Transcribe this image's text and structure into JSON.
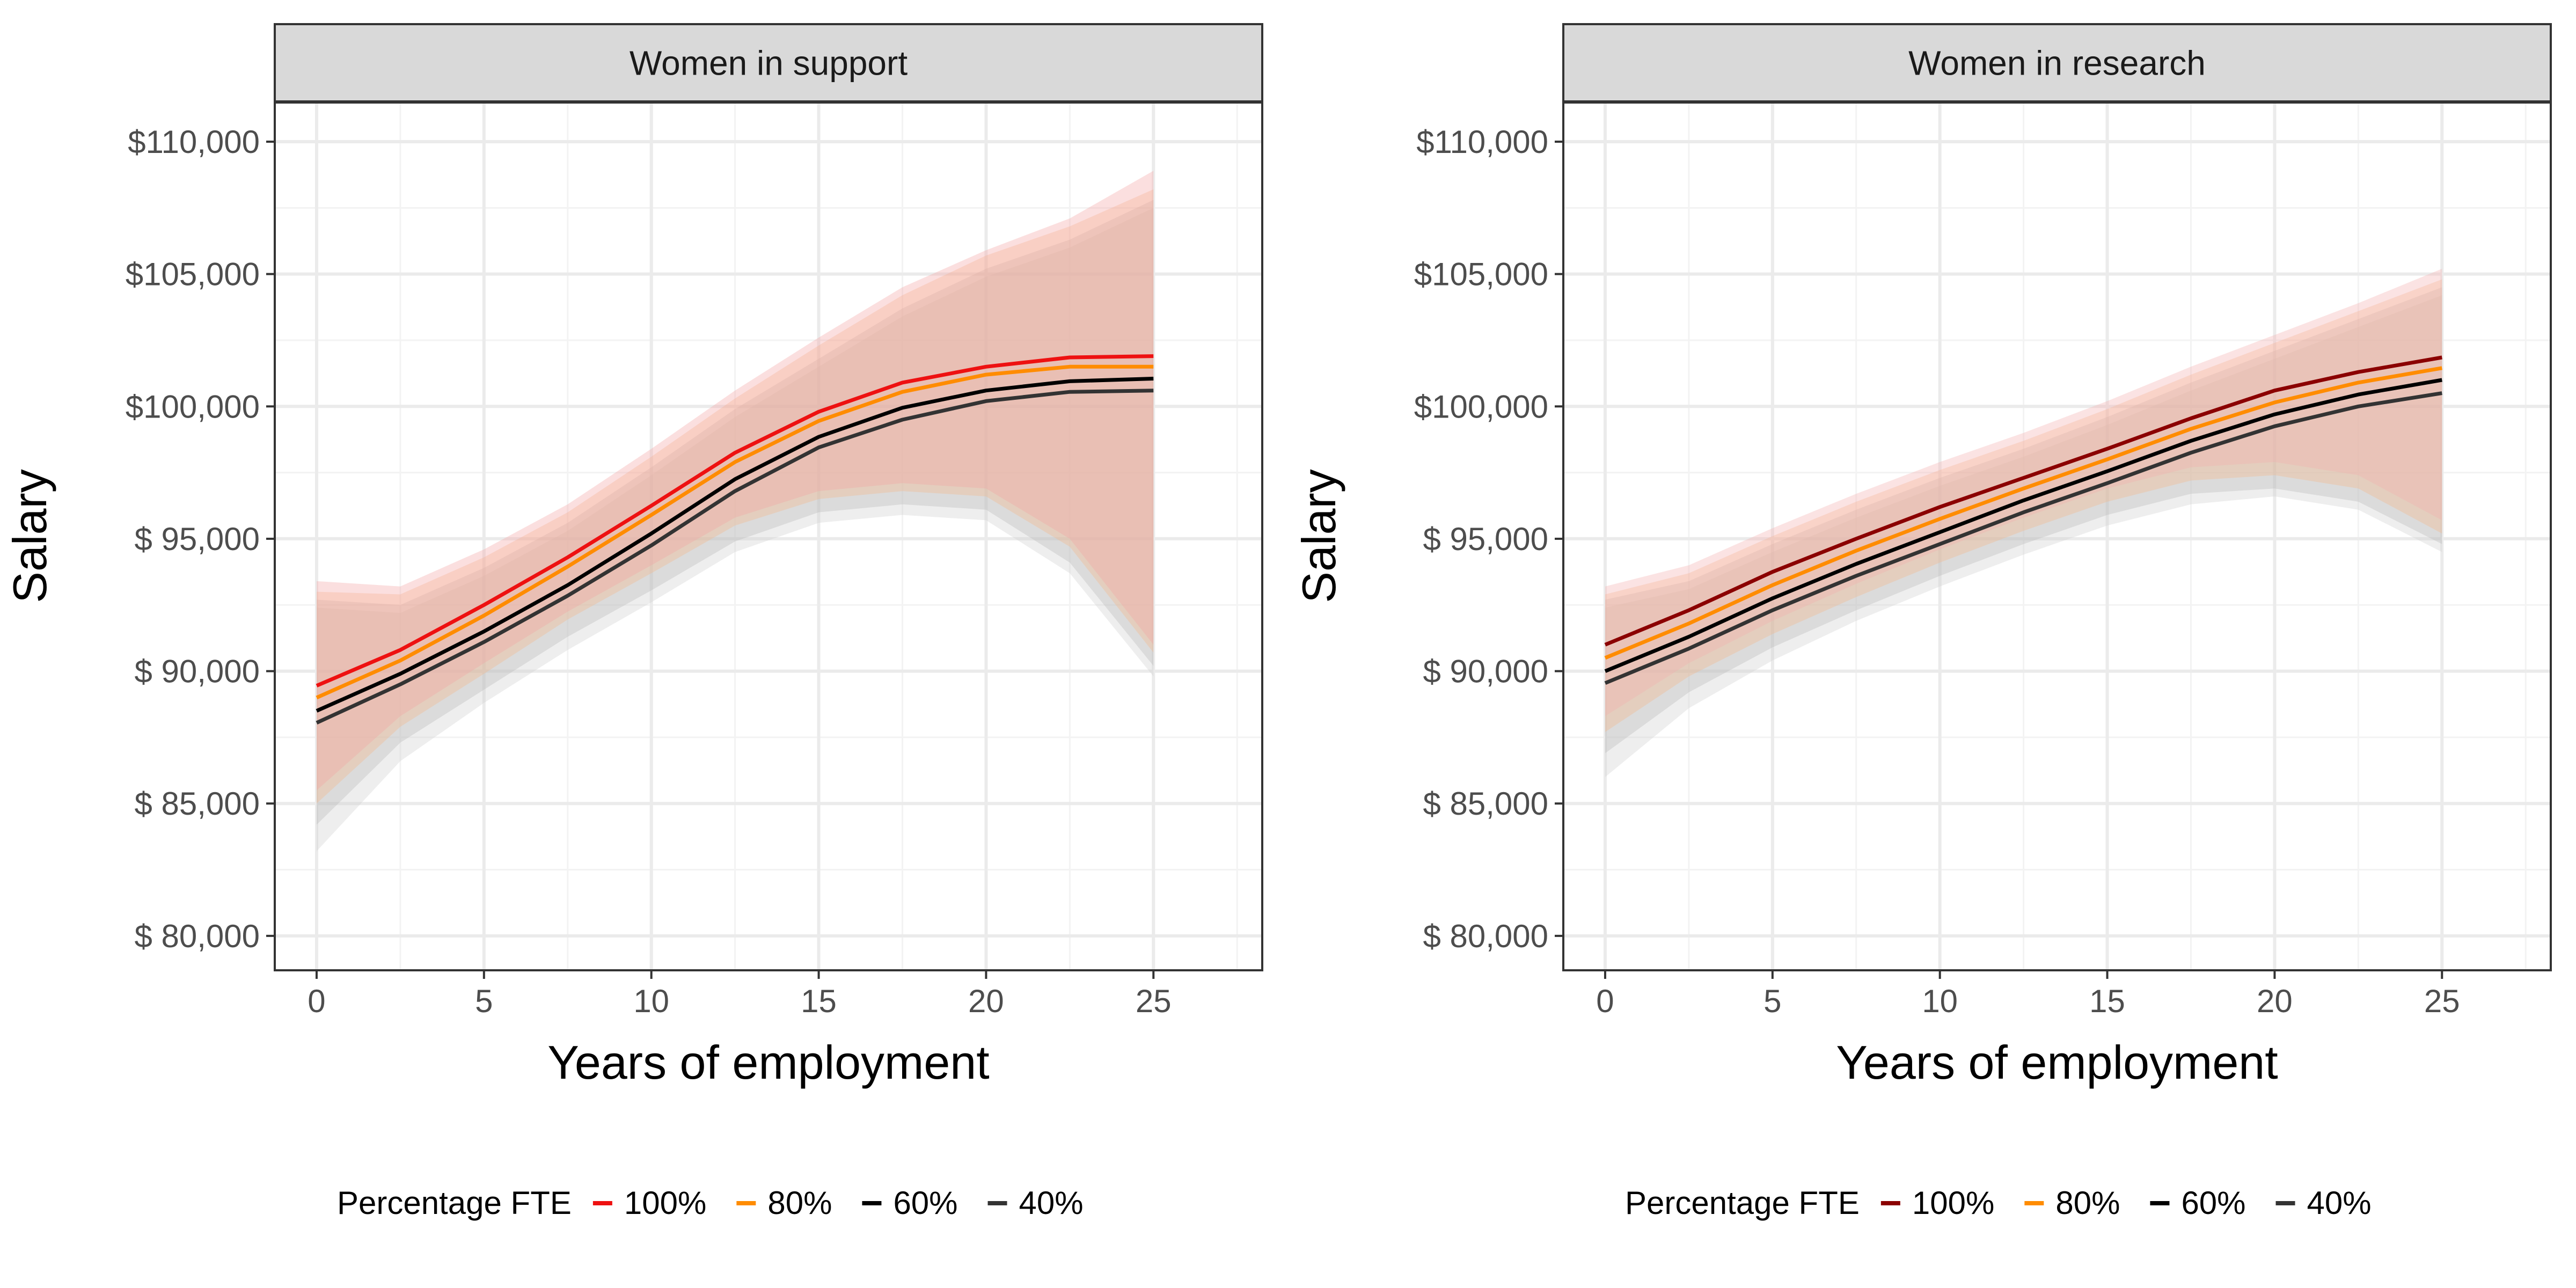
{
  "chart_data": [
    {
      "type": "line",
      "facet_title": "Women in support",
      "xlabel": "Years of employment",
      "ylabel": "Salary",
      "xlim": [
        -1.25,
        28.25
      ],
      "ylim": [
        78700,
        111500
      ],
      "x_ticks": [
        0,
        5,
        10,
        15,
        20,
        25
      ],
      "x_tick_labels": [
        "0",
        "5",
        "10",
        "15",
        "20",
        "25"
      ],
      "y_ticks": [
        80000,
        85000,
        90000,
        95000,
        100000,
        105000,
        110000
      ],
      "y_tick_labels": [
        "$ 80,000",
        "$ 85,000",
        "$ 90,000",
        "$ 95,000",
        "$100,000",
        "$105,000",
        "$110,000"
      ],
      "grid": true,
      "x": [
        0,
        2.5,
        5,
        7.5,
        10,
        12.5,
        15,
        17.5,
        20,
        22.5,
        25
      ],
      "series": [
        {
          "name": "100%",
          "color": "#ee1111",
          "band_color": "#f4a3a3",
          "values": [
            89450,
            90800,
            92500,
            94300,
            96250,
            98250,
            99800,
            100900,
            101500,
            101850,
            101900
          ],
          "lower": [
            85500,
            88300,
            90300,
            92250,
            94000,
            95800,
            96800,
            97100,
            96900,
            95000,
            91000
          ],
          "upper": [
            93400,
            93200,
            94600,
            96300,
            98400,
            100600,
            102600,
            104500,
            105900,
            107100,
            108900
          ]
        },
        {
          "name": "80%",
          "color": "#ff8c00",
          "band_color": "#f6b889",
          "values": [
            89000,
            90400,
            92100,
            93950,
            95900,
            97900,
            99450,
            100550,
            101200,
            101500,
            101500
          ],
          "lower": [
            85000,
            87900,
            89900,
            91950,
            93700,
            95500,
            96500,
            96800,
            96600,
            94700,
            90700
          ],
          "upper": [
            93000,
            92900,
            94300,
            96000,
            98100,
            100300,
            102300,
            104200,
            105700,
            106800,
            108200
          ]
        },
        {
          "name": "60%",
          "color": "#000000",
          "band_color": "#b8b8b8",
          "values": [
            88500,
            89900,
            91500,
            93250,
            95200,
            97250,
            98850,
            99950,
            100600,
            100950,
            101050
          ],
          "lower": [
            84200,
            87300,
            89300,
            91300,
            93050,
            94900,
            96000,
            96300,
            96100,
            94100,
            90200
          ],
          "upper": [
            92700,
            92500,
            93900,
            95600,
            97700,
            99900,
            101800,
            103700,
            105200,
            106300,
            107800
          ]
        },
        {
          "name": "40%",
          "color": "#333333",
          "band_color": "#cfcfcf",
          "values": [
            88050,
            89500,
            91100,
            92850,
            94750,
            96800,
            98450,
            99500,
            100200,
            100550,
            100600
          ],
          "lower": [
            83200,
            86600,
            88800,
            90800,
            92600,
            94500,
            95600,
            95900,
            95700,
            93700,
            89800
          ],
          "upper": [
            92400,
            92200,
            93600,
            95300,
            97400,
            99600,
            101500,
            103400,
            104900,
            106000,
            107500
          ]
        }
      ]
    },
    {
      "type": "line",
      "facet_title": "Women in research",
      "xlabel": "Years of employment",
      "ylabel": "Salary",
      "xlim": [
        -1.25,
        28.25
      ],
      "ylim": [
        78700,
        111500
      ],
      "x_ticks": [
        0,
        5,
        10,
        15,
        20,
        25
      ],
      "x_tick_labels": [
        "0",
        "5",
        "10",
        "15",
        "20",
        "25"
      ],
      "y_ticks": [
        80000,
        85000,
        90000,
        95000,
        100000,
        105000,
        110000
      ],
      "y_tick_labels": [
        "$ 80,000",
        "$ 85,000",
        "$ 90,000",
        "$ 95,000",
        "$100,000",
        "$105,000",
        "$110,000"
      ],
      "grid": true,
      "x": [
        0,
        2.5,
        5,
        7.5,
        10,
        12.5,
        15,
        17.5,
        20,
        22.5,
        25
      ],
      "series": [
        {
          "name": "100%",
          "color": "#8b0000",
          "band_color": "#f4b0b0",
          "values": [
            91000,
            92300,
            93750,
            95000,
            96200,
            97300,
            98400,
            99550,
            100600,
            101300,
            101850
          ],
          "lower": [
            88300,
            90300,
            91900,
            93300,
            94600,
            95800,
            96900,
            97700,
            97900,
            97400,
            95700
          ],
          "upper": [
            93200,
            94000,
            95400,
            96700,
            97900,
            99000,
            100200,
            101500,
            102700,
            103900,
            105200
          ]
        },
        {
          "name": "80%",
          "color": "#ff8c00",
          "band_color": "#f6b889",
          "values": [
            90500,
            91800,
            93250,
            94550,
            95750,
            96900,
            98000,
            99150,
            100150,
            100900,
            101450
          ],
          "lower": [
            87700,
            89800,
            91400,
            92800,
            94100,
            95300,
            96400,
            97200,
            97400,
            96900,
            95200
          ],
          "upper": [
            92900,
            93700,
            95100,
            96400,
            97600,
            98700,
            99900,
            101200,
            102400,
            103600,
            104800
          ]
        },
        {
          "name": "60%",
          "color": "#000000",
          "band_color": "#b8b8b8",
          "values": [
            90000,
            91300,
            92750,
            94050,
            95250,
            96450,
            97550,
            98700,
            99700,
            100450,
            101000
          ],
          "lower": [
            86900,
            89200,
            90900,
            92300,
            93600,
            94800,
            95900,
            96700,
            96900,
            96400,
            94800
          ],
          "upper": [
            92700,
            93400,
            94800,
            96100,
            97300,
            98400,
            99600,
            100900,
            102100,
            103300,
            104500
          ]
        },
        {
          "name": "40%",
          "color": "#333333",
          "band_color": "#cfcfcf",
          "values": [
            89550,
            90850,
            92300,
            93600,
            94800,
            96000,
            97100,
            98250,
            99250,
            100000,
            100500
          ],
          "lower": [
            86000,
            88600,
            90400,
            91900,
            93200,
            94400,
            95500,
            96300,
            96600,
            96100,
            94500
          ],
          "upper": [
            92400,
            93100,
            94500,
            95800,
            97000,
            98100,
            99300,
            100600,
            101800,
            103000,
            104200
          ]
        }
      ]
    }
  ],
  "legends": [
    {
      "title": "Percentage FTE",
      "items": [
        {
          "label": "100%",
          "color": "#ee1111"
        },
        {
          "label": "80%",
          "color": "#ff8c00"
        },
        {
          "label": "60%",
          "color": "#000000"
        },
        {
          "label": "40%",
          "color": "#333333"
        }
      ]
    },
    {
      "title": "Percentage FTE",
      "items": [
        {
          "label": "100%",
          "color": "#8b0000"
        },
        {
          "label": "80%",
          "color": "#ff8c00"
        },
        {
          "label": "60%",
          "color": "#000000"
        },
        {
          "label": "40%",
          "color": "#333333"
        }
      ]
    }
  ],
  "legend_position": "bottom",
  "theme": {
    "panel_background": "#ffffff",
    "strip_background": "#d9d9d9",
    "grid_major": "#ebebeb",
    "grid_minor": "#f3f3f3",
    "panel_border": "#333333"
  }
}
